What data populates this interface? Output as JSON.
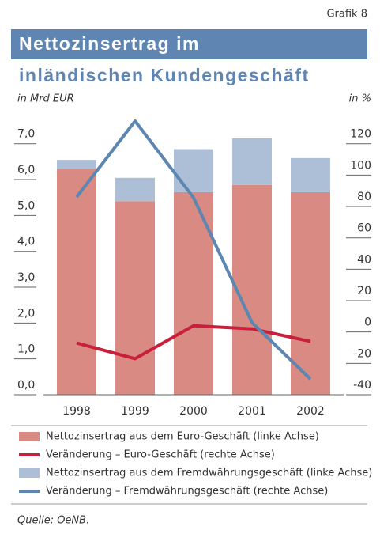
{
  "chart_data": {
    "type": "bar",
    "stacked": true,
    "label": "Grafik 8",
    "title": "Nettozinsertrag im",
    "subtitle": "inländischen Kundengeschäft",
    "ylabel": "in Mrd EUR",
    "y2label": "in %",
    "source": "Quelle: OeNB.",
    "categories": [
      "1998",
      "1999",
      "2000",
      "2001",
      "2002"
    ],
    "ylim": [
      0,
      7.7
    ],
    "yticks": [
      {
        "value": 0,
        "label": "0,0"
      },
      {
        "value": 1,
        "label": "1,0"
      },
      {
        "value": 2,
        "label": "2,0"
      },
      {
        "value": 3,
        "label": "3,0"
      },
      {
        "value": 4,
        "label": "4,0"
      },
      {
        "value": 5,
        "label": "5,0"
      },
      {
        "value": 6,
        "label": "6,0"
      },
      {
        "value": 7,
        "label": "7,0"
      }
    ],
    "y2lim": [
      -40,
      136
    ],
    "y2ticks": [
      -40,
      -20,
      0,
      20,
      40,
      60,
      80,
      100,
      120
    ],
    "series": [
      {
        "name": "Nettozinsertrag aus dem Euro-Geschäft (linke Achse)",
        "type": "bar",
        "color": "#d98a82",
        "values": [
          6.3,
          5.4,
          5.65,
          5.85,
          5.65
        ]
      },
      {
        "name": "Veränderung – Euro-Geschäft (rechte Achse)",
        "type": "line",
        "axis": "y2",
        "color": "#c8203c",
        "values": [
          -7,
          -17,
          4,
          2,
          -6
        ]
      },
      {
        "name": "Nettozinsertrag aus dem Fremdwährungsgeschäft (linke Achse)",
        "type": "bar",
        "color": "#adbfd7",
        "values": [
          0.25,
          0.65,
          1.2,
          1.3,
          0.95
        ]
      },
      {
        "name": "Veränderung – Fremdwährungsgeschäft (rechte Achse)",
        "type": "line",
        "axis": "y2",
        "color": "#5d87b1",
        "values": [
          86,
          134.5,
          85.6,
          6,
          -30
        ]
      }
    ]
  }
}
